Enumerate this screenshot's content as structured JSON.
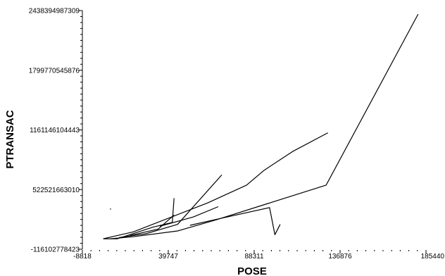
{
  "chart_data": {
    "type": "line",
    "title": "",
    "xlabel": "POSE",
    "ylabel": "PTRANSAC",
    "xlim": [
      -8818,
      185440
    ],
    "ylim": [
      -116102778423,
      2438394987309
    ],
    "x_ticks": [
      -8818,
      39747,
      88311,
      136876,
      185440
    ],
    "y_ticks": [
      -116102778423,
      522521663010,
      1161146104443,
      1799770545876,
      2438394987309
    ],
    "x_tick_labels": [
      "-8818",
      "39747",
      "88311",
      "136876",
      "185440"
    ],
    "y_tick_labels": [
      "-116102778423",
      "522521663010",
      "1161146104443",
      "1799770545876",
      "2438394987309"
    ],
    "grid": false,
    "legend": "none",
    "line_color": "#000000",
    "series": [
      {
        "x": [
          3000,
          11000,
          31000,
          42000,
          43000
        ],
        "y": [
          -4000000000,
          -4000000000,
          120000000000,
          170000000000,
          430000000000
        ]
      },
      {
        "x": [
          3000,
          20000,
          62000,
          84000,
          94000,
          110000,
          130000
        ],
        "y": [
          -4000000000,
          70000000000,
          380000000000,
          570000000000,
          730000000000,
          930000000000,
          1130000000000
        ]
      },
      {
        "x": [
          7000,
          20000,
          45000,
          67000,
          129000,
          181000
        ],
        "y": [
          -4000000000,
          18000000000,
          80000000000,
          200000000000,
          570000000000,
          2400000000000
        ]
      },
      {
        "x": [
          12000,
          27000,
          45000,
          70000
        ],
        "y": [
          10000000000,
          50000000000,
          150000000000,
          680000000000
        ]
      },
      {
        "x": [
          18000,
          34000,
          43000
        ],
        "y": [
          30000000000,
          100000000000,
          250000000000
        ]
      },
      {
        "x": [
          35000,
          54000,
          68000
        ],
        "y": [
          130000000000,
          230000000000,
          340000000000
        ]
      },
      {
        "x": [
          52000,
          66000,
          97000,
          100000,
          103000
        ],
        "y": [
          140000000000,
          200000000000,
          330000000000,
          40000000000,
          150000000000
        ]
      },
      {
        "x": [
          7000,
          7200
        ],
        "y": [
          310000000000,
          320000000000
        ]
      }
    ]
  }
}
